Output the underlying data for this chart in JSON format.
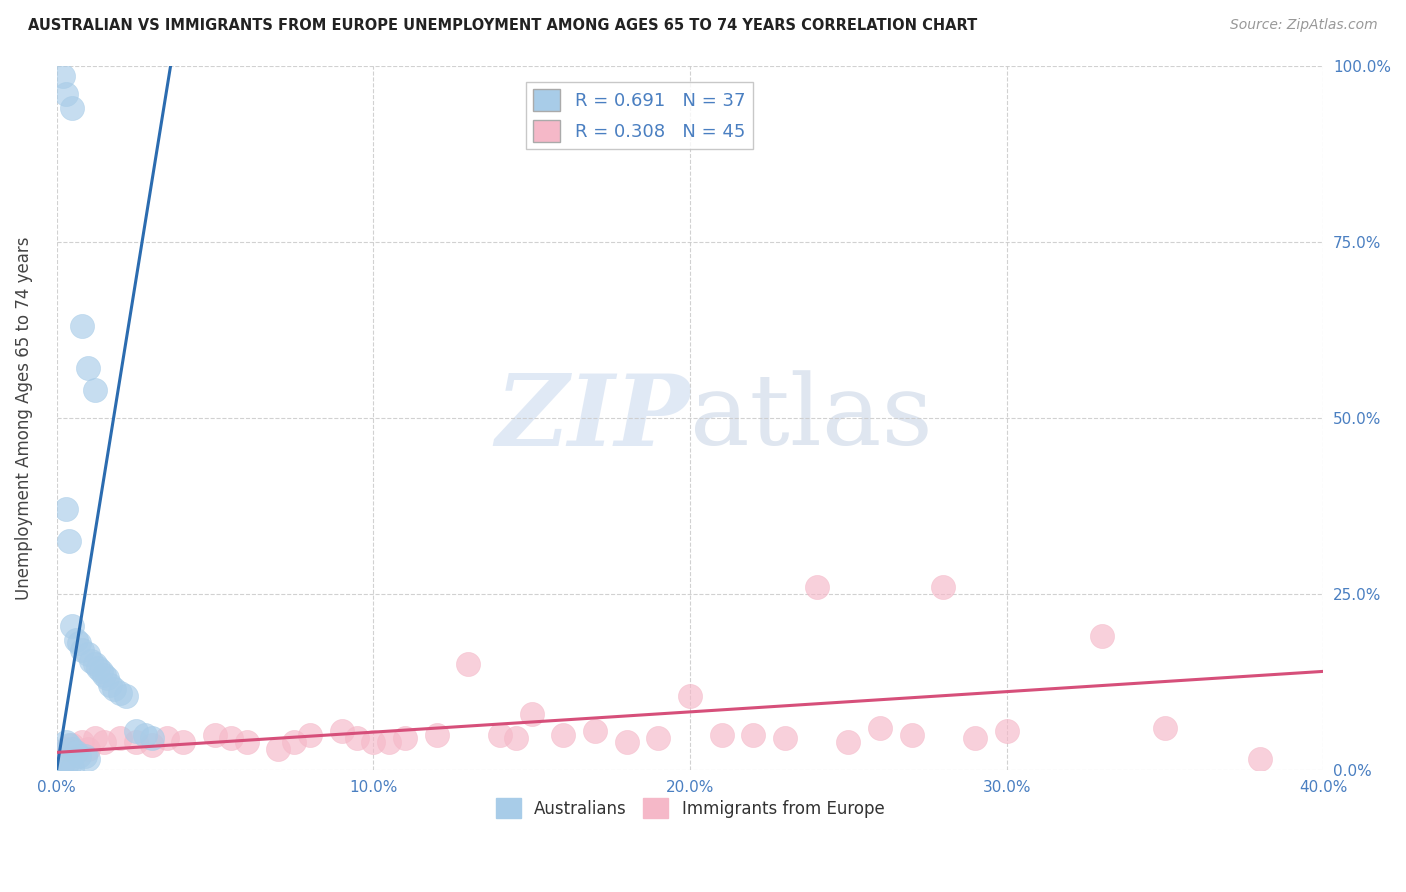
{
  "title": "AUSTRALIAN VS IMMIGRANTS FROM EUROPE UNEMPLOYMENT AMONG AGES 65 TO 74 YEARS CORRELATION CHART",
  "source": "Source: ZipAtlas.com",
  "ylabel": "Unemployment Among Ages 65 to 74 years",
  "xlim": [
    0.0,
    40.0
  ],
  "ylim": [
    0.0,
    100.0
  ],
  "xticks": [
    0.0,
    10.0,
    20.0,
    30.0,
    40.0
  ],
  "yticks": [
    0.0,
    25.0,
    50.0,
    75.0,
    100.0
  ],
  "xticklabels": [
    "0.0%",
    "10.0%",
    "20.0%",
    "30.0%",
    "40.0%"
  ],
  "yticklabels": [
    "0.0%",
    "25.0%",
    "50.0%",
    "75.0%",
    "100.0%"
  ],
  "blue_color": "#a8cce8",
  "pink_color": "#f5b8c8",
  "blue_line_color": "#2b6cb0",
  "pink_line_color": "#d64f7a",
  "tick_color": "#4a7fc1",
  "R_blue": 0.691,
  "N_blue": 37,
  "R_pink": 0.308,
  "N_pink": 45,
  "legend_labels": [
    "Australians",
    "Immigrants from Europe"
  ],
  "watermark_zip": "ZIP",
  "watermark_atlas": "atlas",
  "blue_line_x": [
    0.0,
    3.6
  ],
  "blue_line_y": [
    0.0,
    100.0
  ],
  "pink_line_x": [
    0.0,
    40.0
  ],
  "pink_line_y": [
    2.5,
    14.0
  ],
  "australians_x": [
    0.2,
    0.3,
    0.5,
    0.8,
    1.0,
    1.2,
    0.3,
    0.4,
    0.5,
    0.6,
    0.7,
    0.8,
    1.0,
    1.1,
    1.2,
    1.3,
    1.4,
    1.5,
    1.6,
    1.7,
    1.8,
    2.0,
    2.2,
    2.5,
    2.8,
    3.0,
    0.3,
    0.4,
    0.5,
    0.6,
    0.7,
    0.9,
    1.0,
    0.2,
    0.3,
    0.4,
    0.5
  ],
  "australians_y": [
    98.5,
    96.0,
    94.0,
    63.0,
    57.0,
    54.0,
    37.0,
    32.5,
    20.5,
    18.5,
    18.0,
    17.0,
    16.5,
    15.5,
    15.0,
    14.5,
    14.0,
    13.5,
    13.0,
    12.0,
    11.5,
    11.0,
    10.5,
    5.5,
    5.0,
    4.5,
    4.0,
    3.5,
    3.0,
    2.5,
    2.0,
    2.0,
    1.5,
    1.0,
    0.5,
    0.5,
    0.3
  ],
  "europe_x": [
    0.3,
    0.5,
    0.8,
    1.0,
    1.2,
    1.5,
    2.0,
    2.5,
    3.0,
    3.5,
    4.0,
    5.0,
    5.5,
    6.0,
    7.0,
    7.5,
    8.0,
    9.0,
    9.5,
    10.0,
    10.5,
    11.0,
    12.0,
    13.0,
    14.0,
    14.5,
    15.0,
    16.0,
    17.0,
    18.0,
    19.0,
    20.0,
    21.0,
    22.0,
    23.0,
    24.0,
    25.0,
    26.0,
    27.0,
    28.0,
    29.0,
    30.0,
    33.0,
    35.0,
    38.0
  ],
  "europe_y": [
    3.0,
    3.5,
    4.0,
    3.0,
    4.5,
    4.0,
    4.5,
    4.0,
    3.5,
    4.5,
    4.0,
    5.0,
    4.5,
    4.0,
    3.0,
    4.0,
    5.0,
    5.5,
    4.5,
    4.0,
    4.0,
    4.5,
    5.0,
    15.0,
    5.0,
    4.5,
    8.0,
    5.0,
    5.5,
    4.0,
    4.5,
    10.5,
    5.0,
    5.0,
    4.5,
    26.0,
    4.0,
    6.0,
    5.0,
    26.0,
    4.5,
    5.5,
    19.0,
    6.0,
    1.5
  ]
}
